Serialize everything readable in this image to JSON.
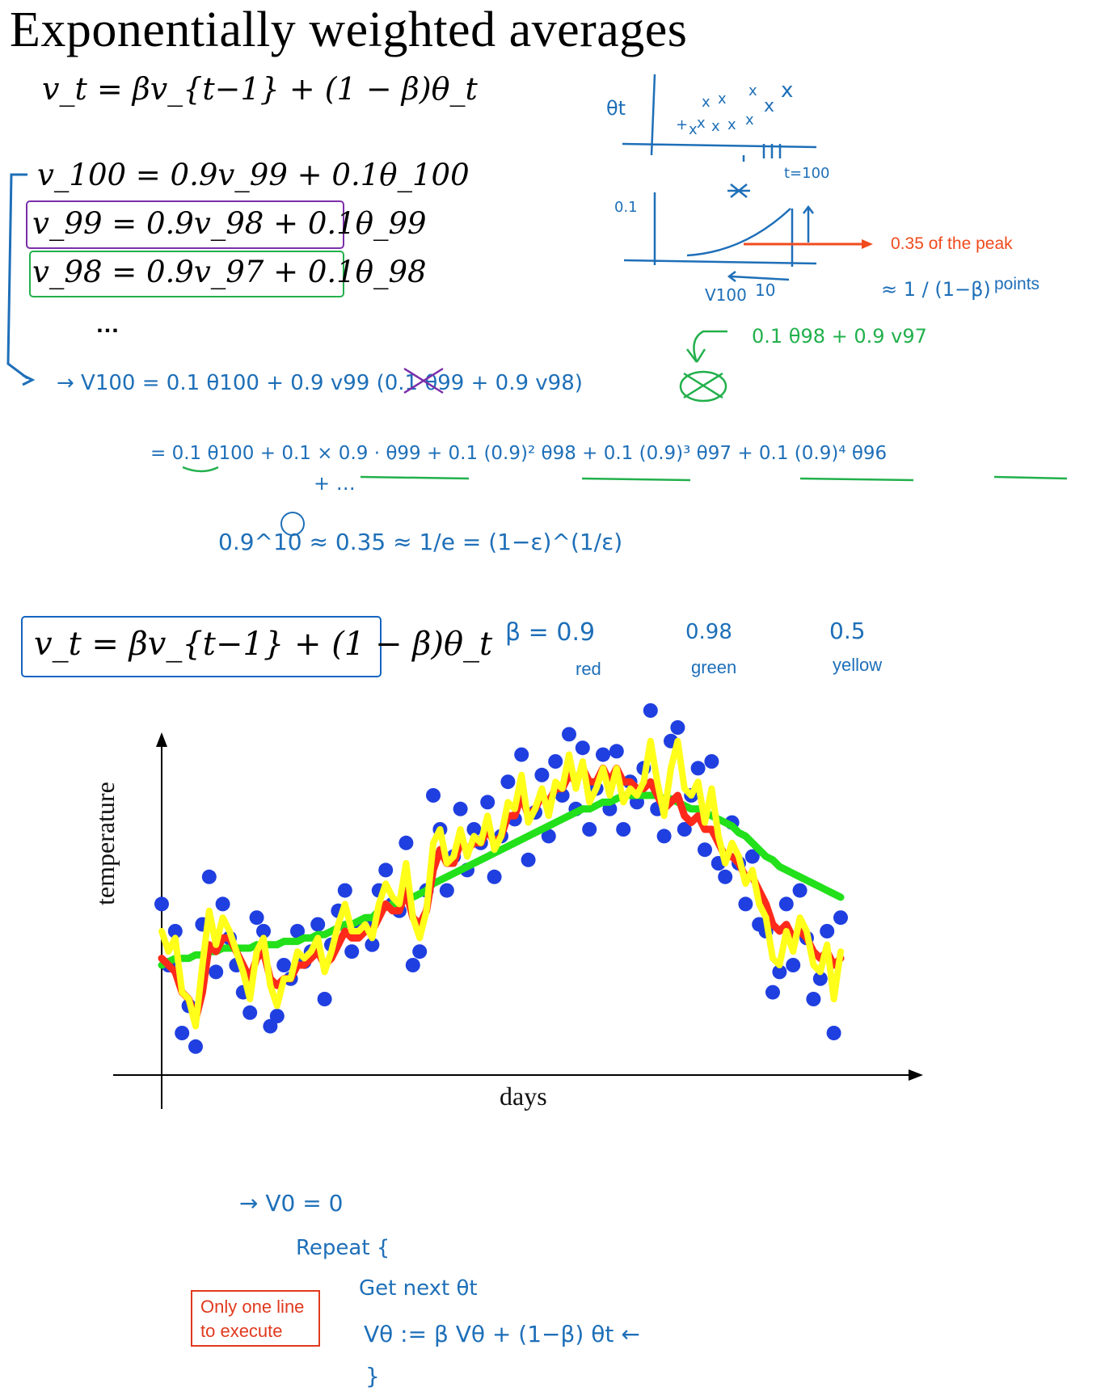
{
  "title": "Exponentially weighted averages",
  "equation_main": "v_t = βv_{t−1} + (1 − β)θ_t",
  "expansion_rows": [
    "v_100 = 0.9v_99 + 0.1θ_100",
    "v_99 = 0.9v_98 + 0.1θ_99",
    "v_98 = 0.9v_97 + 0.1θ_98"
  ],
  "ellipsis": "…",
  "annotations": {
    "peak_note": "0.35 of the peak",
    "points_note": "points",
    "handwritten": {
      "sketch_theta": "θt",
      "sketch_t100": "t=100",
      "sketch_01": "0.1",
      "sketch_10": "10",
      "sketch_v100": "V100",
      "approx_frac": "≈ 1 / (1−β)",
      "green_note": "0.1 θ98 + 0.9 v97",
      "line1": "→ V100 = 0.1 θ100 + 0.9 v99 (0.1 θ99 + 0.9 v98)",
      "line2": "= 0.1 θ100 + 0.1 × 0.9 · θ99 + 0.1 (0.9)² θ98 + 0.1 (0.9)³ θ97 + 0.1 (0.9)⁴ θ96",
      "line3": "+ …",
      "line4": "0.9^10 ≈ 0.35 ≈ 1/e = (1−ε)^(1/ε)",
      "beta_09": "β = 0.9",
      "beta_098": "0.98",
      "beta_05": "0.5",
      "pseudo1": "→ V0 = 0",
      "pseudo2": "Repeat {",
      "pseudo3": "Get next θt",
      "pseudo4": "Vθ := β Vθ + (1−β) θt ←",
      "pseudo5": "}"
    }
  },
  "equation_boxed": "v_t = βv_{t−1} + (1 − β)θ_t",
  "beta_labels": {
    "red": "red",
    "green": "green",
    "yellow": "yellow"
  },
  "callout": {
    "line1": "Only one line",
    "line2": "to execute"
  },
  "colors": {
    "data_points": "#1f3fe0",
    "beta_09": "#ff2a1a",
    "beta_098": "#22e01a",
    "beta_05": "#ffff1a",
    "ink": "#1e6fb8"
  },
  "chart_data": {
    "type": "scatter",
    "title": "",
    "xlabel": "days",
    "ylabel": "temperature",
    "xlim": [
      0,
      100
    ],
    "ylim": [
      0,
      100
    ],
    "series": [
      {
        "name": "theta (daily temperature)",
        "style": "points",
        "x": [
          0,
          1,
          2,
          3,
          4,
          5,
          6,
          7,
          8,
          9,
          10,
          11,
          12,
          13,
          14,
          15,
          16,
          17,
          18,
          19,
          20,
          21,
          22,
          23,
          24,
          25,
          26,
          27,
          28,
          29,
          30,
          31,
          32,
          33,
          34,
          35,
          36,
          37,
          38,
          39,
          40,
          41,
          42,
          43,
          44,
          45,
          46,
          47,
          48,
          49,
          50,
          51,
          52,
          53,
          54,
          55,
          56,
          57,
          58,
          59,
          60,
          61,
          62,
          63,
          64,
          65,
          66,
          67,
          68,
          69,
          70,
          71,
          72,
          73,
          74,
          75,
          76,
          77,
          78,
          79,
          80,
          81,
          82,
          83,
          84,
          85,
          86,
          87,
          88,
          89,
          90,
          91,
          92,
          93,
          94,
          95,
          96,
          97,
          98,
          99,
          100
        ],
        "y": [
          48,
          30,
          40,
          10,
          18,
          6,
          42,
          56,
          28,
          48,
          38,
          30,
          22,
          16,
          44,
          40,
          12,
          15,
          30,
          26,
          40,
          31,
          34,
          42,
          20,
          36,
          46,
          52,
          34,
          40,
          42,
          36,
          52,
          58,
          48,
          46,
          66,
          30,
          34,
          52,
          80,
          70,
          52,
          62,
          76,
          58,
          70,
          66,
          78,
          56,
          68,
          84,
          73,
          92,
          61,
          75,
          86,
          68,
          90,
          80,
          98,
          76,
          94,
          70,
          82,
          92,
          76,
          93,
          70,
          84,
          78,
          88,
          105,
          76,
          68,
          96,
          100,
          70,
          80,
          88,
          64,
          90,
          60,
          56,
          72,
          60,
          48,
          62,
          42,
          40,
          22,
          28,
          48,
          30,
          52,
          38,
          20,
          26,
          40,
          10,
          44
        ]
      },
      {
        "name": "β = 0.9 (red)",
        "style": "line",
        "y": [
          32,
          30,
          28,
          22,
          20,
          14,
          22,
          36,
          34,
          38,
          38,
          34,
          30,
          26,
          32,
          34,
          26,
          24,
          26,
          26,
          30,
          30,
          32,
          34,
          30,
          32,
          36,
          40,
          38,
          38,
          40,
          40,
          44,
          48,
          46,
          46,
          52,
          44,
          42,
          46,
          58,
          64,
          60,
          60,
          66,
          64,
          66,
          66,
          70,
          66,
          68,
          74,
          74,
          80,
          74,
          76,
          80,
          78,
          82,
          82,
          86,
          84,
          88,
          84,
          84,
          88,
          84,
          88,
          84,
          84,
          82,
          82,
          84,
          80,
          76,
          78,
          80,
          74,
          72,
          74,
          70,
          70,
          66,
          62,
          62,
          60,
          56,
          56,
          52,
          48,
          42,
          40,
          42,
          38,
          40,
          38,
          34,
          32,
          34,
          30,
          32
        ]
      },
      {
        "name": "β = 0.98 (green)",
        "style": "line",
        "y": [
          30,
          31,
          32,
          32,
          32,
          33,
          33,
          34,
          34,
          35,
          35,
          35,
          35,
          35,
          36,
          36,
          36,
          36,
          37,
          37,
          37,
          38,
          38,
          39,
          39,
          40,
          41,
          42,
          42,
          43,
          44,
          44,
          46,
          47,
          48,
          48,
          50,
          50,
          51,
          52,
          54,
          55,
          56,
          57,
          58,
          59,
          60,
          61,
          62,
          63,
          64,
          65,
          66,
          67,
          68,
          69,
          70,
          71,
          72,
          73,
          74,
          75,
          76,
          76,
          77,
          78,
          78,
          79,
          80,
          80,
          80,
          80,
          80,
          80,
          79,
          79,
          78,
          77,
          76,
          76,
          75,
          74,
          73,
          72,
          71,
          69,
          68,
          66,
          64,
          62,
          61,
          59,
          58,
          57,
          56,
          55,
          54,
          53,
          52,
          51,
          50
        ]
      },
      {
        "name": "β = 0.5 (yellow)",
        "style": "line",
        "y": [
          40,
          34,
          38,
          22,
          20,
          12,
          30,
          46,
          36,
          44,
          40,
          34,
          28,
          20,
          34,
          38,
          24,
          18,
          26,
          26,
          34,
          32,
          34,
          38,
          28,
          34,
          42,
          48,
          40,
          40,
          42,
          38,
          48,
          54,
          50,
          48,
          60,
          44,
          38,
          46,
          66,
          70,
          60,
          62,
          70,
          62,
          68,
          66,
          74,
          64,
          68,
          78,
          76,
          86,
          72,
          76,
          82,
          74,
          84,
          82,
          92,
          82,
          90,
          78,
          82,
          88,
          80,
          88,
          78,
          82,
          80,
          84,
          96,
          84,
          74,
          88,
          96,
          82,
          80,
          84,
          72,
          82,
          68,
          60,
          66,
          62,
          54,
          58,
          48,
          44,
          32,
          30,
          40,
          34,
          44,
          40,
          30,
          28,
          36,
          20,
          34
        ]
      }
    ]
  }
}
